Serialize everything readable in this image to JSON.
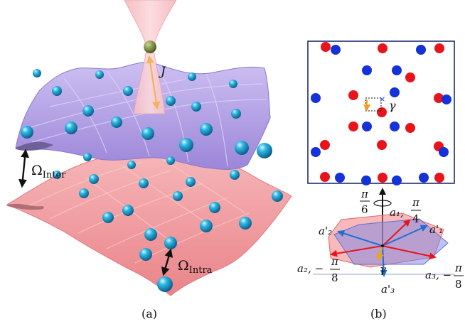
{
  "panel_a": {
    "caption": "(a)",
    "coupling_label": "J",
    "inter_label": "Ω",
    "inter_sub": "Inter",
    "intra_label": "Ω",
    "intra_sub": "Intra",
    "colors": {
      "upper_layer": "#b9a8e6",
      "lower_layer": "#f3a0a3",
      "atom": "#1fa7d6",
      "beam": "#f6c4c8",
      "tip_atom": "#6f7c35",
      "coupling_arrow": "#f2b35a"
    }
  },
  "panel_b": {
    "caption": "(b)",
    "gamma_label": "γ",
    "angle_top_num": "π",
    "angle_top_den": "6",
    "a1_label": "a₁,",
    "a1_num": "π",
    "a1_den": "4",
    "a1p_label": "a'₁",
    "a2p_label": "a'₂",
    "a2_label": "a₂, −",
    "a2_num": "π",
    "a2_den": "8",
    "a3_label": "a₃, −",
    "a3_num": "π",
    "a3_den": "8",
    "a3p_label": "a'₃",
    "colors": {
      "red_site": "#e8141c",
      "blue_site": "#1432d8",
      "red_hexagon": "#f08080",
      "blue_hexagon": "#7a86e8",
      "vector_red": "#e8141c",
      "vector_blue": "#1f6fd0",
      "gamma_arrow": "#f0a020"
    }
  }
}
